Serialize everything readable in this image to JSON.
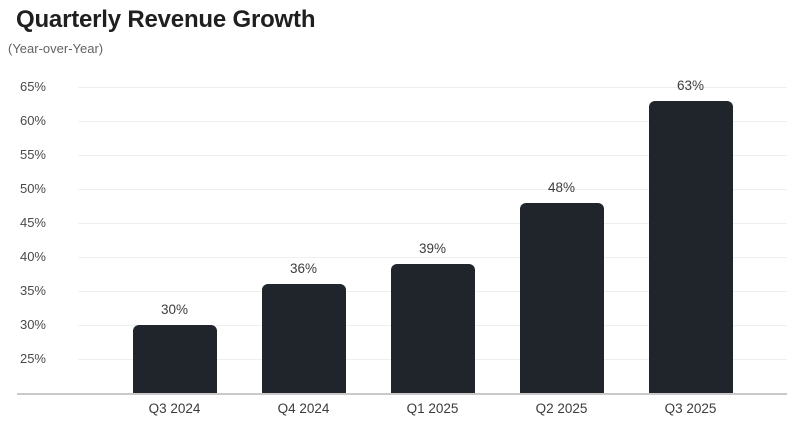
{
  "chart_data": {
    "type": "bar",
    "title": "Quarterly Revenue Growth",
    "subtitle": "(Year-over-Year)",
    "categories": [
      "Q3 2024",
      "Q4 2024",
      "Q1 2025",
      "Q2 2025",
      "Q3 2025"
    ],
    "values": [
      30,
      36,
      39,
      48,
      63
    ],
    "value_labels": [
      "30%",
      "36%",
      "39%",
      "48%",
      "63%"
    ],
    "xlabel": "",
    "ylabel": "",
    "y_axis": {
      "min": 20,
      "max": 67,
      "unit": "%",
      "tick_step": 5,
      "ticks": [
        25,
        30,
        35,
        40,
        45,
        50,
        55,
        60,
        65
      ],
      "tick_labels": [
        "25%",
        "30%",
        "35%",
        "40%",
        "45%",
        "50%",
        "55%",
        "60%",
        "65%"
      ]
    },
    "grid": "horizontal",
    "legend": "none",
    "colors": {
      "bar": "#20242b",
      "gridline": "#efefef",
      "axis_line": "#c9c9c9",
      "title": "#1f1f1f",
      "subtitle": "#636363",
      "tick_label": "#4a4a4a",
      "value_label": "#3c3c3c",
      "background": "#ffffff"
    }
  }
}
